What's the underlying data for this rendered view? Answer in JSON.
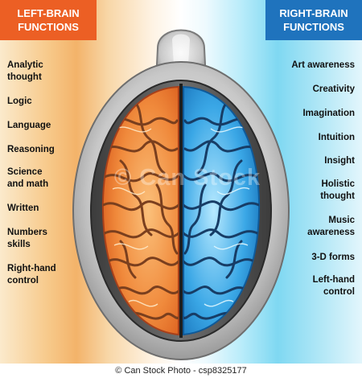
{
  "left": {
    "header": [
      "LEFT-BRAIN",
      "FUNCTIONS"
    ],
    "items": [
      {
        "lines": [
          "Analytic",
          "thought"
        ]
      },
      {
        "lines": [
          "Logic"
        ]
      },
      {
        "lines": [
          "Language"
        ]
      },
      {
        "lines": [
          "Reasoning"
        ]
      },
      {
        "lines": [
          "Science",
          "and math"
        ]
      },
      {
        "lines": [
          "Written"
        ]
      },
      {
        "lines": [
          "Numbers",
          "skills"
        ]
      },
      {
        "lines": [
          "Right-hand",
          "control"
        ]
      }
    ]
  },
  "right": {
    "header": [
      "RIGHT-BRAIN",
      "FUNCTIONS"
    ],
    "items": [
      {
        "lines": [
          "Art awareness"
        ]
      },
      {
        "lines": [
          "Creativity"
        ]
      },
      {
        "lines": [
          "Imagination"
        ]
      },
      {
        "lines": [
          "Intuition"
        ]
      },
      {
        "lines": [
          "Insight"
        ]
      },
      {
        "lines": [
          "Holistic",
          "thought"
        ]
      },
      {
        "lines": [
          "Music",
          "awareness"
        ]
      },
      {
        "lines": [
          "3-D forms"
        ]
      },
      {
        "lines": [
          "Left-hand",
          "control"
        ]
      }
    ]
  },
  "watermark": "© Can Stock",
  "footer": "© Can Stock Photo - csp8325177",
  "colors": {
    "left_header_bg": "#ec5f24",
    "right_header_bg": "#1f73bd",
    "left_hemisphere": "#f08a3c",
    "right_hemisphere": "#3aa7e6"
  }
}
